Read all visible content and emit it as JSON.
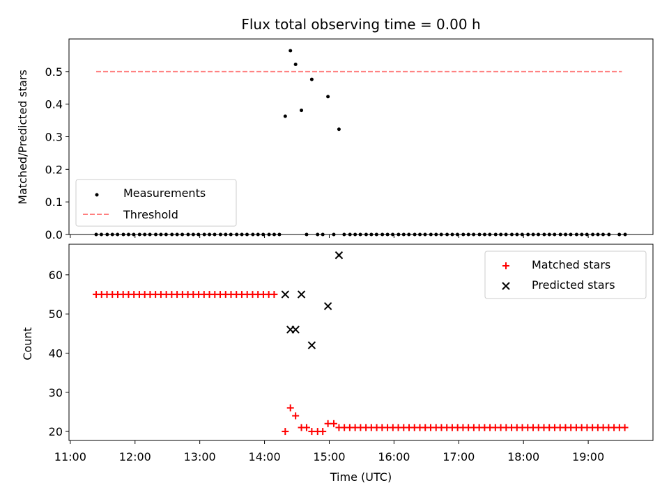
{
  "chart_data": [
    {
      "type": "scatter",
      "title": "Flux total observing time = 0.00 h",
      "xlabel": "",
      "ylabel": "Matched/Predicted stars",
      "ylim": [
        0,
        0.6
      ],
      "yticks": [
        0.0,
        0.1,
        0.2,
        0.3,
        0.4,
        0.5
      ],
      "ytick_labels": [
        "0.0",
        "0.1",
        "0.2",
        "0.3",
        "0.4",
        "0.5"
      ],
      "xlim_hours": [
        10.98,
        20.0
      ],
      "legend_position": "lower-left",
      "legend": [
        "Measurements",
        "Threshold"
      ],
      "threshold": {
        "name": "Threshold",
        "value": 0.5,
        "x_range_hours": [
          11.4,
          19.52
        ],
        "color": "#ff7f7f",
        "style": "dashed"
      },
      "series": [
        {
          "name": "Measurements",
          "color": "#000000",
          "x_hours": [
            14.32,
            14.4,
            14.48,
            14.57,
            14.73,
            14.98,
            15.15
          ],
          "y": [
            0.363,
            0.564,
            0.522,
            0.381,
            0.476,
            0.423,
            0.323
          ]
        }
      ],
      "zero_point_x_hours": [
        11.4,
        11.48,
        11.57,
        11.65,
        11.73,
        11.82,
        11.9,
        11.98,
        12.07,
        12.15,
        12.23,
        12.32,
        12.4,
        12.48,
        12.57,
        12.65,
        12.73,
        12.82,
        12.9,
        12.98,
        13.07,
        13.15,
        13.23,
        13.32,
        13.4,
        13.48,
        13.57,
        13.65,
        13.73,
        13.82,
        13.9,
        13.98,
        14.07,
        14.15,
        14.23,
        14.65,
        14.82,
        14.9,
        15.07,
        15.23,
        15.32,
        15.4,
        15.48,
        15.57,
        15.65,
        15.73,
        15.82,
        15.9,
        15.98,
        16.07,
        16.15,
        16.23,
        16.32,
        16.4,
        16.48,
        16.57,
        16.65,
        16.73,
        16.82,
        16.9,
        16.98,
        17.07,
        17.15,
        17.23,
        17.32,
        17.4,
        17.48,
        17.57,
        17.65,
        17.73,
        17.82,
        17.9,
        17.98,
        18.07,
        18.15,
        18.23,
        18.32,
        18.4,
        18.48,
        18.57,
        18.65,
        18.73,
        18.82,
        18.9,
        18.98,
        19.07,
        19.15,
        19.23,
        19.32,
        19.48,
        19.57
      ]
    },
    {
      "type": "scatter",
      "title": "",
      "xlabel": "Time (UTC)",
      "ylabel": "Count",
      "ylim": [
        17.7,
        67.8
      ],
      "yticks": [
        20,
        30,
        40,
        50,
        60
      ],
      "ytick_labels": [
        "20",
        "30",
        "40",
        "50",
        "60"
      ],
      "xlim_hours": [
        10.98,
        20.0
      ],
      "xticks_hours": [
        11,
        12,
        13,
        14,
        15,
        16,
        17,
        18,
        19
      ],
      "xtick_labels": [
        "11:00",
        "12:00",
        "13:00",
        "14:00",
        "15:00",
        "16:00",
        "17:00",
        "18:00",
        "19:00"
      ],
      "legend_position": "upper-right",
      "legend": [
        "Matched stars",
        "Predicted stars"
      ],
      "series": [
        {
          "name": "Matched stars",
          "marker": "plus",
          "color": "#ff0000",
          "segments": [
            {
              "x_from": 11.4,
              "x_to": 14.23,
              "step": 0.0833,
              "y": 55
            },
            {
              "x_from": 15.15,
              "x_to": 19.57,
              "step": 0.0833,
              "y": 21
            }
          ],
          "points": [
            {
              "x": 14.32,
              "y": 20
            },
            {
              "x": 14.4,
              "y": 26
            },
            {
              "x": 14.48,
              "y": 24
            },
            {
              "x": 14.57,
              "y": 21
            },
            {
              "x": 14.65,
              "y": 21
            },
            {
              "x": 14.73,
              "y": 20
            },
            {
              "x": 14.82,
              "y": 20
            },
            {
              "x": 14.9,
              "y": 20
            },
            {
              "x": 14.98,
              "y": 22
            },
            {
              "x": 15.07,
              "y": 22
            }
          ]
        },
        {
          "name": "Predicted stars",
          "marker": "x",
          "color": "#000000",
          "points": [
            {
              "x": 14.32,
              "y": 55
            },
            {
              "x": 14.4,
              "y": 46
            },
            {
              "x": 14.48,
              "y": 46
            },
            {
              "x": 14.57,
              "y": 55
            },
            {
              "x": 14.73,
              "y": 42
            },
            {
              "x": 14.98,
              "y": 52
            },
            {
              "x": 15.15,
              "y": 65
            }
          ]
        }
      ]
    }
  ]
}
